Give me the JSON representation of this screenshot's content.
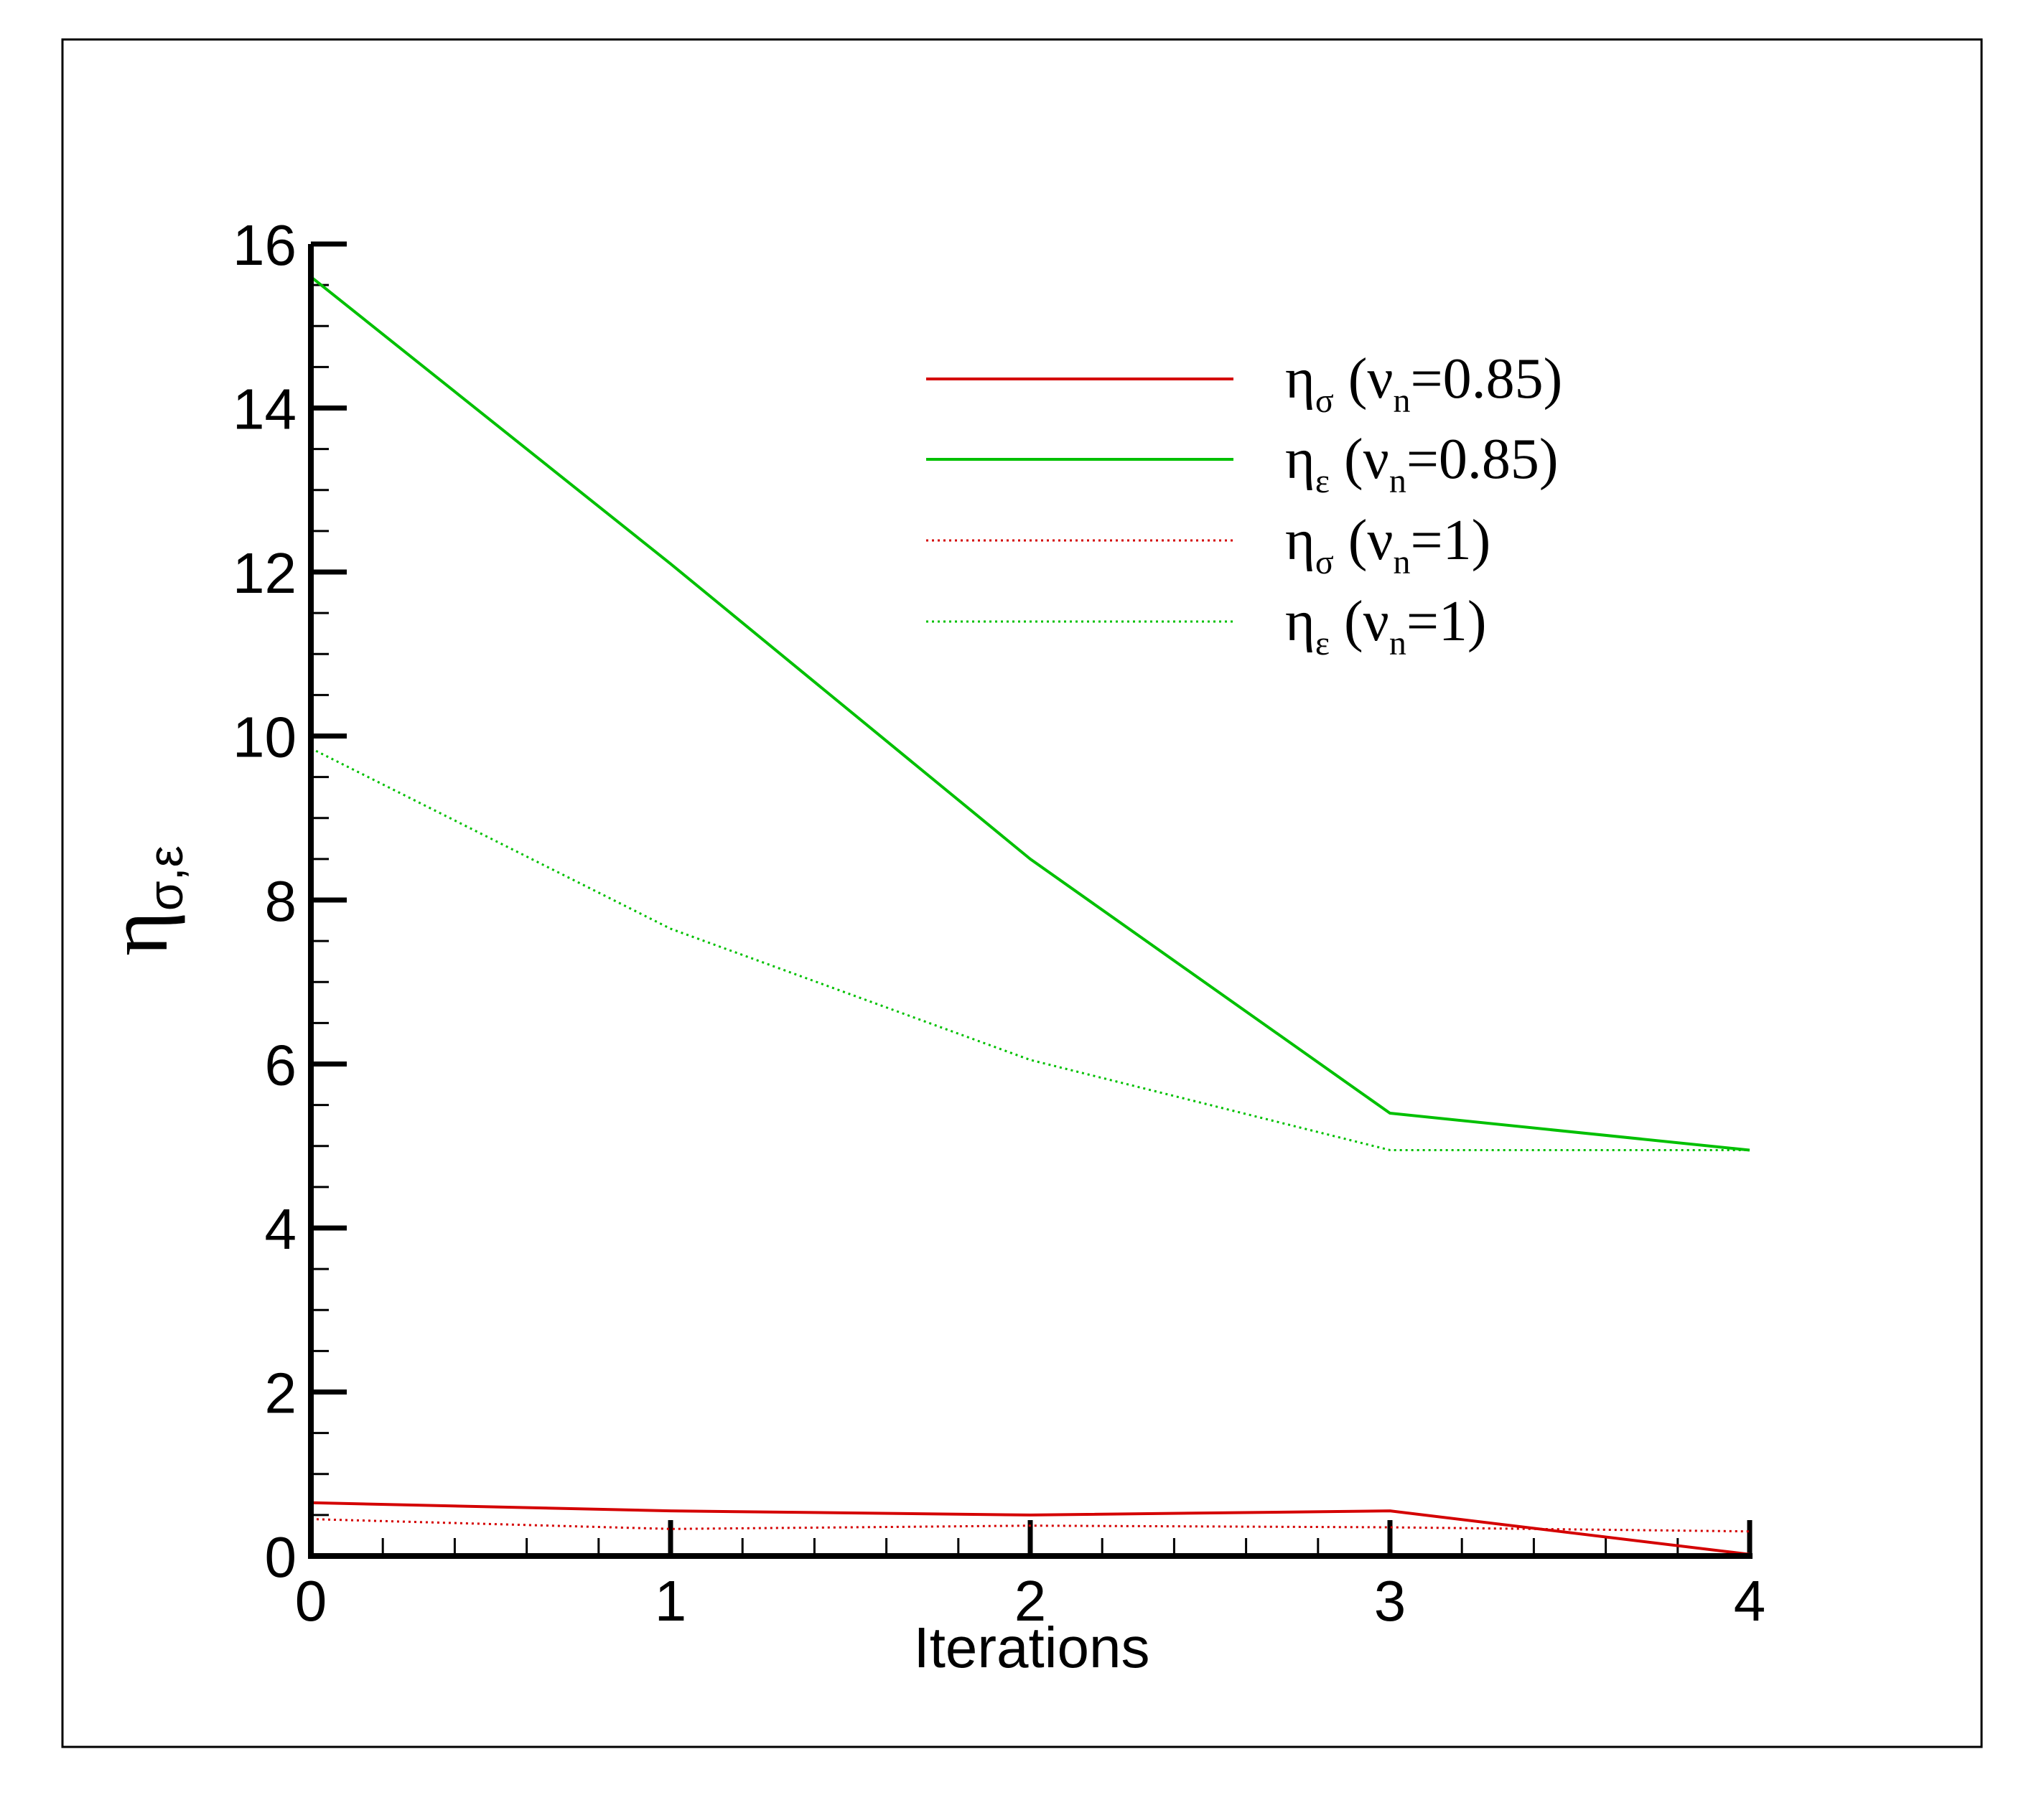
{
  "chart_data": {
    "type": "line",
    "title": "",
    "xlabel": "Iterations",
    "ylabel": {
      "main": "η",
      "sub": "σ,ε"
    },
    "xlim": [
      0,
      4
    ],
    "ylim": [
      0,
      16
    ],
    "x_ticks": [
      0,
      1,
      2,
      3,
      4
    ],
    "y_ticks": [
      0,
      2,
      4,
      6,
      8,
      10,
      12,
      14,
      16
    ],
    "x_minor_per_major": 5,
    "y_minor_per_major": 4,
    "grid": false,
    "legend_position": "top-right",
    "x": [
      0,
      1,
      2,
      3,
      4
    ],
    "series": [
      {
        "name": "ησ (νn=0.85)",
        "label_main": "η",
        "label_sub": "σ",
        "label_rest1": " (ν",
        "label_sub2": "n",
        "label_rest2": "=0.85)",
        "color": "#d40000",
        "dash": "solid",
        "values": [
          0.65,
          0.55,
          0.5,
          0.55,
          0.02
        ]
      },
      {
        "name": "ηε (νn=0.85)",
        "label_main": "η",
        "label_sub": "ε",
        "label_rest1": " (ν",
        "label_sub2": "n",
        "label_rest2": "=0.85)",
        "color": "#00c000",
        "dash": "solid",
        "values": [
          15.6,
          12.1,
          8.5,
          5.4,
          4.95
        ]
      },
      {
        "name": "ησ (νn=1)",
        "label_main": "η",
        "label_sub": "σ",
        "label_rest1": " (ν",
        "label_sub2": "n",
        "label_rest2": "=1)",
        "color": "#d40000",
        "dash": "dotted",
        "values": [
          0.45,
          0.33,
          0.37,
          0.35,
          0.3
        ]
      },
      {
        "name": "ηε (νn=1)",
        "label_main": "η",
        "label_sub": "ε",
        "label_rest1": " (ν",
        "label_sub2": "n",
        "label_rest2": "=1)",
        "color": "#00c000",
        "dash": "dotted",
        "values": [
          9.85,
          7.65,
          6.05,
          4.95,
          4.95
        ]
      }
    ]
  }
}
